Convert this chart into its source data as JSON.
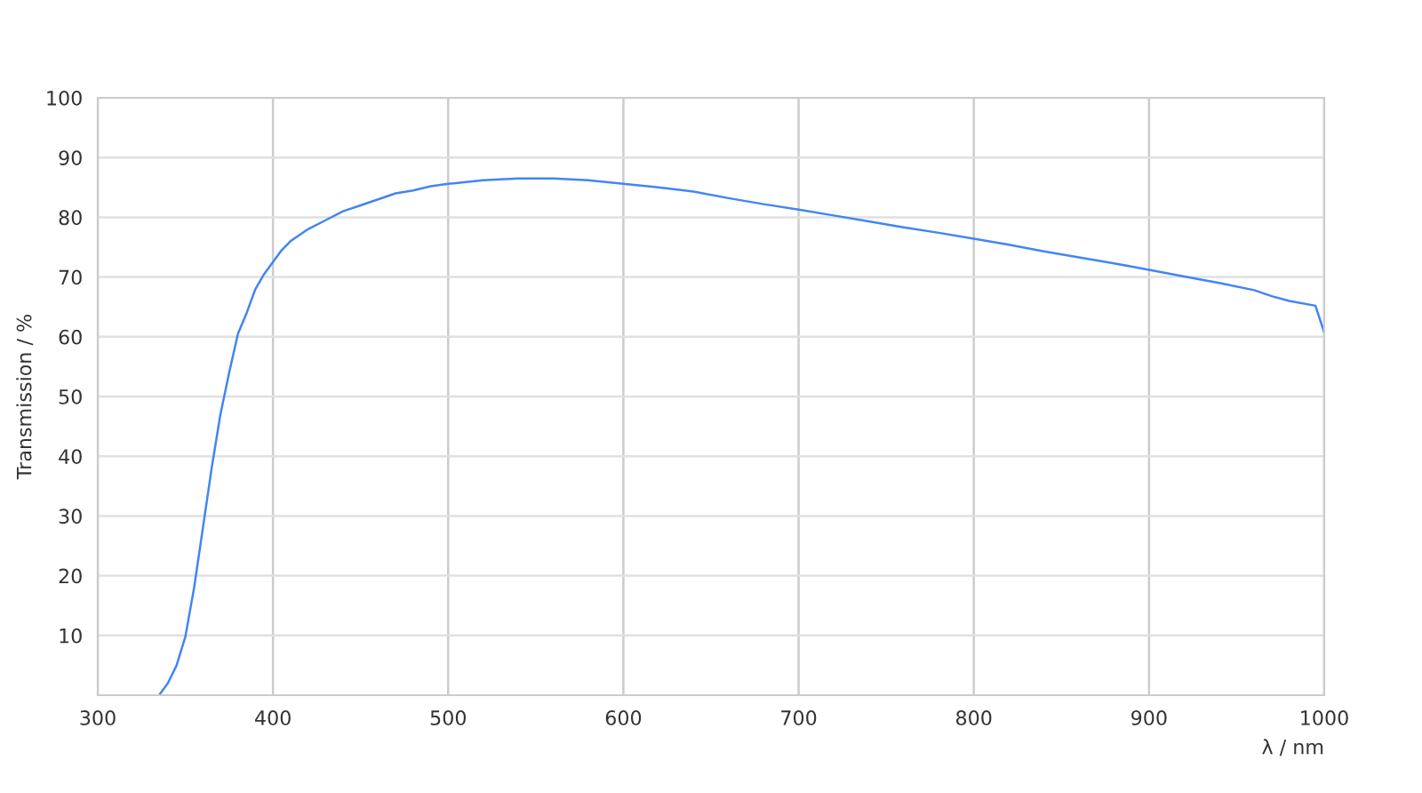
{
  "chart_data": {
    "type": "line",
    "xlabel": "λ / nm",
    "ylabel": "Transmission / %",
    "xlim": [
      300,
      1000
    ],
    "ylim": [
      0,
      100
    ],
    "xticks": [
      300,
      400,
      500,
      600,
      700,
      800,
      900,
      1000
    ],
    "yticks": [
      10,
      20,
      30,
      40,
      50,
      60,
      70,
      80,
      90,
      100
    ],
    "grid": true,
    "marker": "none",
    "line_style": "solid",
    "series": [
      {
        "color": "#4285f4",
        "x": [
          335,
          340,
          345,
          350,
          355,
          360,
          365,
          370,
          375,
          380,
          385,
          390,
          395,
          400,
          405,
          410,
          415,
          420,
          430,
          440,
          450,
          460,
          470,
          480,
          490,
          500,
          520,
          540,
          560,
          580,
          600,
          620,
          640,
          660,
          680,
          700,
          720,
          740,
          760,
          780,
          800,
          820,
          840,
          860,
          880,
          900,
          920,
          940,
          960,
          970,
          980,
          995,
          1000
        ],
        "values": [
          0,
          2,
          5,
          9.8,
          18,
          28,
          38,
          47,
          54,
          60.5,
          64,
          68,
          70.5,
          72.5,
          74.5,
          76,
          77,
          78,
          79.5,
          81,
          82,
          83,
          84,
          84.5,
          85.2,
          85.6,
          86.2,
          86.5,
          86.5,
          86.2,
          85.6,
          85,
          84.3,
          83.2,
          82.2,
          81.3,
          80.3,
          79.3,
          78.3,
          77.4,
          76.4,
          75.4,
          74.3,
          73.3,
          72.3,
          71.2,
          70.1,
          69,
          67.8,
          66.8,
          66,
          65.2,
          60.7
        ]
      }
    ]
  }
}
